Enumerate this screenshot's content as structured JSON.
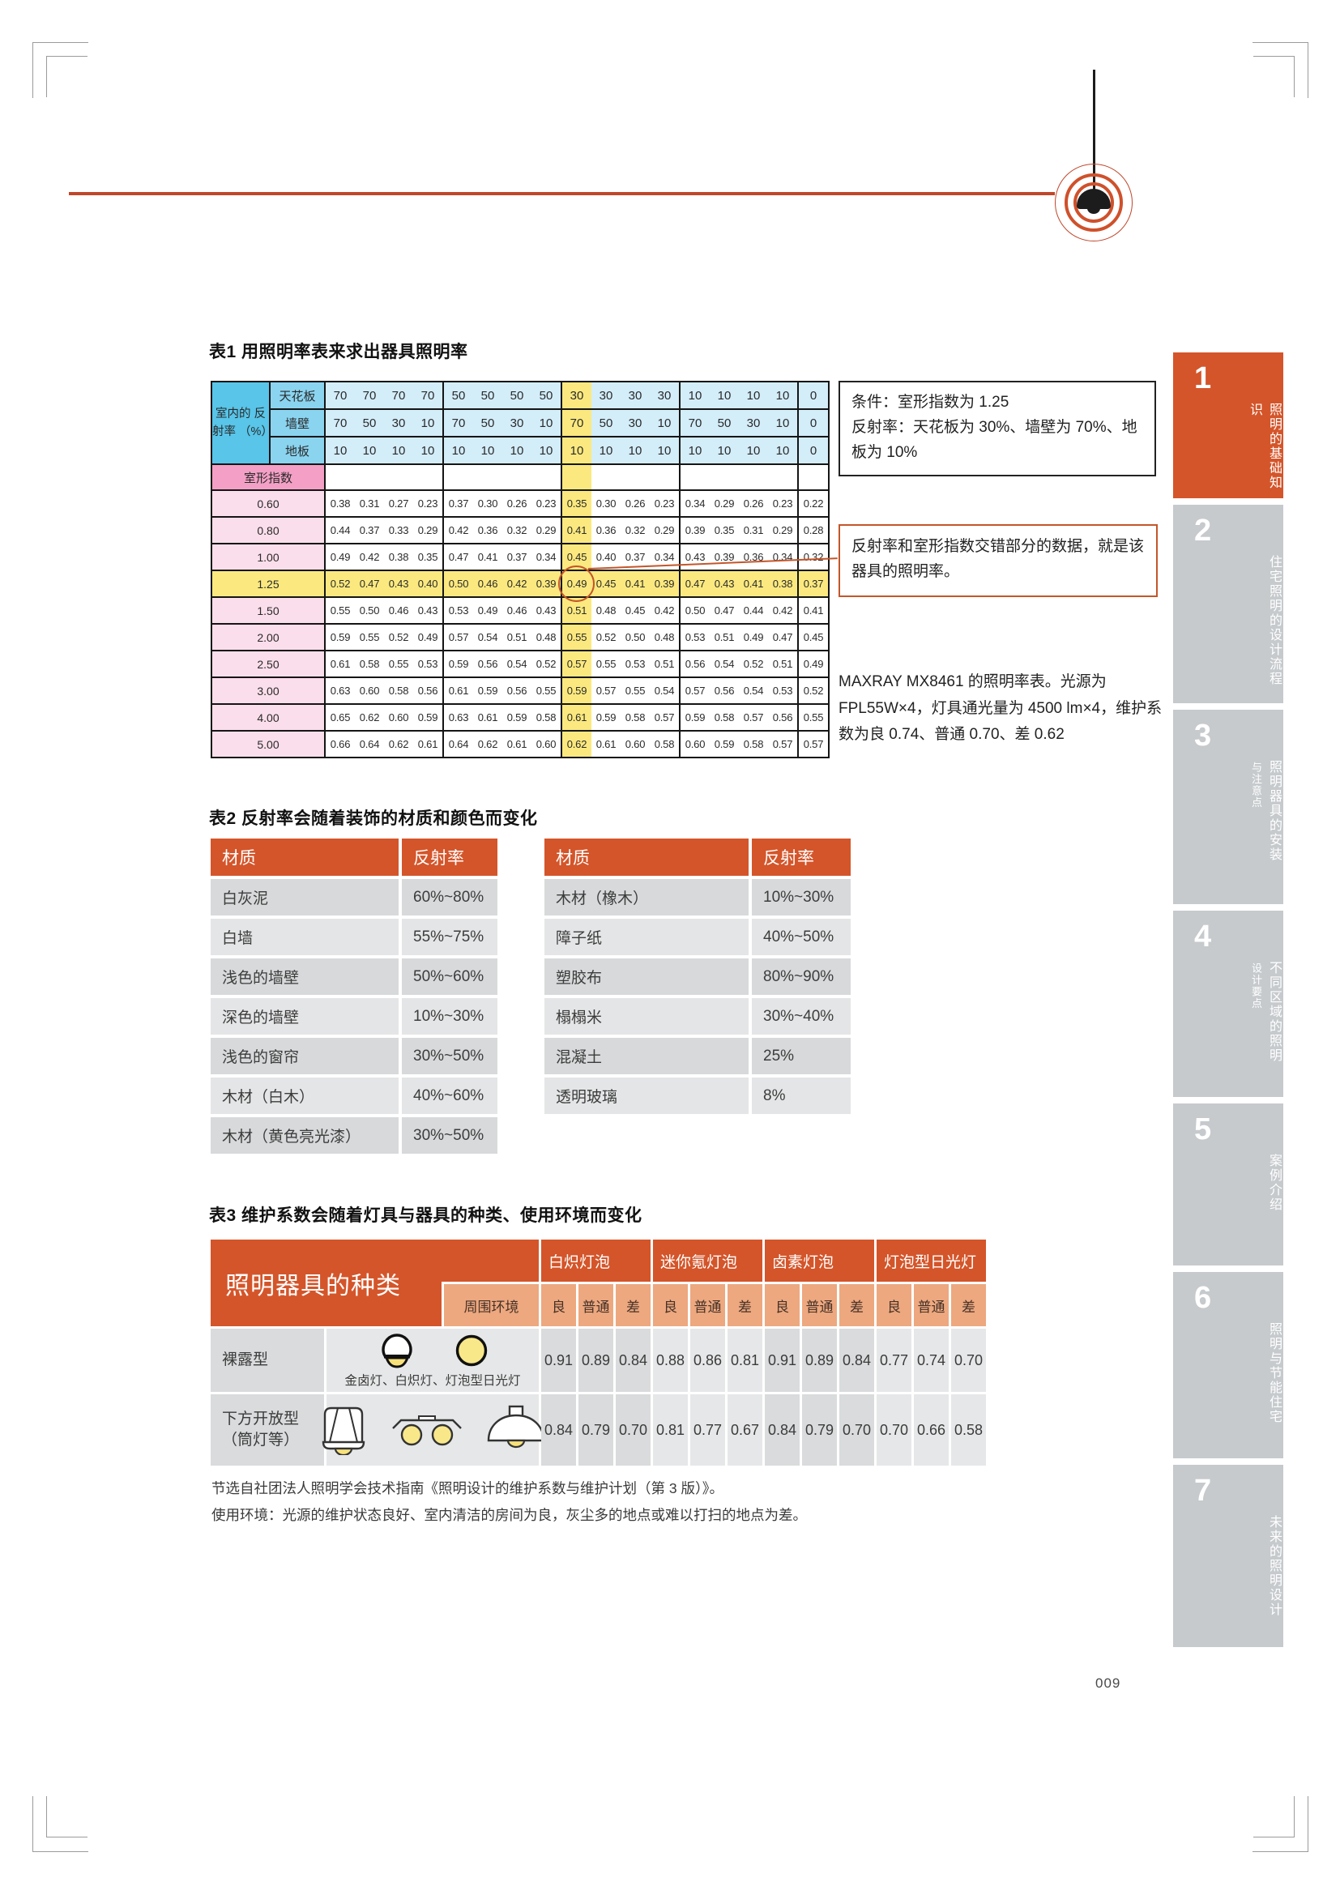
{
  "page": {
    "number": "009"
  },
  "colors": {
    "accent": "#d4552a",
    "highlight_yellow": "#fbe97f",
    "header_blue": "#58c5e9",
    "index_pink": "#f4a0c6"
  },
  "table1": {
    "title": "表1 用照明率表来求出器具照明率",
    "corner_label": "室内的 反射率 （%）",
    "row_labels": [
      "天花板",
      "墙壁",
      "地板"
    ],
    "header": {
      "ceiling": [
        "70",
        "70",
        "70",
        "70",
        "50",
        "50",
        "50",
        "50",
        "30",
        "30",
        "30",
        "30",
        "10",
        "10",
        "10",
        "10",
        "0"
      ],
      "wall": [
        "70",
        "50",
        "30",
        "10",
        "70",
        "50",
        "30",
        "10",
        "70",
        "50",
        "30",
        "10",
        "70",
        "50",
        "30",
        "10",
        "0"
      ],
      "floor": [
        "10",
        "10",
        "10",
        "10",
        "10",
        "10",
        "10",
        "10",
        "10",
        "10",
        "10",
        "10",
        "10",
        "10",
        "10",
        "10",
        "0"
      ]
    },
    "index_label": "室形指数",
    "highlight_col": 8,
    "highlight_row": "1.25",
    "rows": [
      {
        "index": "0.60",
        "values": [
          "0.38",
          "0.31",
          "0.27",
          "0.23",
          "0.37",
          "0.30",
          "0.26",
          "0.23",
          "0.35",
          "0.30",
          "0.26",
          "0.23",
          "0.34",
          "0.29",
          "0.26",
          "0.23",
          "0.22"
        ]
      },
      {
        "index": "0.80",
        "values": [
          "0.44",
          "0.37",
          "0.33",
          "0.29",
          "0.42",
          "0.36",
          "0.32",
          "0.29",
          "0.41",
          "0.36",
          "0.32",
          "0.29",
          "0.39",
          "0.35",
          "0.31",
          "0.29",
          "0.28"
        ]
      },
      {
        "index": "1.00",
        "values": [
          "0.49",
          "0.42",
          "0.38",
          "0.35",
          "0.47",
          "0.41",
          "0.37",
          "0.34",
          "0.45",
          "0.40",
          "0.37",
          "0.34",
          "0.43",
          "0.39",
          "0.36",
          "0.34",
          "0.32"
        ]
      },
      {
        "index": "1.25",
        "values": [
          "0.52",
          "0.47",
          "0.43",
          "0.40",
          "0.50",
          "0.46",
          "0.42",
          "0.39",
          "0.49",
          "0.45",
          "0.41",
          "0.39",
          "0.47",
          "0.43",
          "0.41",
          "0.38",
          "0.37"
        ]
      },
      {
        "index": "1.50",
        "values": [
          "0.55",
          "0.50",
          "0.46",
          "0.43",
          "0.53",
          "0.49",
          "0.46",
          "0.43",
          "0.51",
          "0.48",
          "0.45",
          "0.42",
          "0.50",
          "0.47",
          "0.44",
          "0.42",
          "0.41"
        ]
      },
      {
        "index": "2.00",
        "values": [
          "0.59",
          "0.55",
          "0.52",
          "0.49",
          "0.57",
          "0.54",
          "0.51",
          "0.48",
          "0.55",
          "0.52",
          "0.50",
          "0.48",
          "0.53",
          "0.51",
          "0.49",
          "0.47",
          "0.45"
        ]
      },
      {
        "index": "2.50",
        "values": [
          "0.61",
          "0.58",
          "0.55",
          "0.53",
          "0.59",
          "0.56",
          "0.54",
          "0.52",
          "0.57",
          "0.55",
          "0.53",
          "0.51",
          "0.56",
          "0.54",
          "0.52",
          "0.51",
          "0.49"
        ]
      },
      {
        "index": "3.00",
        "values": [
          "0.63",
          "0.60",
          "0.58",
          "0.56",
          "0.61",
          "0.59",
          "0.56",
          "0.55",
          "0.59",
          "0.57",
          "0.55",
          "0.54",
          "0.57",
          "0.56",
          "0.54",
          "0.53",
          "0.52"
        ]
      },
      {
        "index": "4.00",
        "values": [
          "0.65",
          "0.62",
          "0.60",
          "0.59",
          "0.63",
          "0.61",
          "0.59",
          "0.58",
          "0.61",
          "0.59",
          "0.58",
          "0.57",
          "0.59",
          "0.58",
          "0.57",
          "0.56",
          "0.55"
        ]
      },
      {
        "index": "5.00",
        "values": [
          "0.66",
          "0.64",
          "0.62",
          "0.61",
          "0.64",
          "0.62",
          "0.61",
          "0.60",
          "0.62",
          "0.61",
          "0.60",
          "0.58",
          "0.60",
          "0.59",
          "0.58",
          "0.57",
          "0.57"
        ]
      }
    ],
    "notes": {
      "condition_line1": "条件：室形指数为 1.25",
      "condition_line2": "反射率：天花板为 30%、墙壁为 70%、地板为 10%",
      "callout": "反射率和室形指数交错部分的数据，就是该器具的照明率。",
      "source": "MAXRAY MX8461 的照明率表。光源为 FPL55W×4，灯具通光量为 4500 lm×4，维护系数为良 0.74、普通 0.70、差 0.62"
    }
  },
  "table2": {
    "title": "表2 反射率会随着装饰的材质和颜色而变化",
    "col_material": "材质",
    "col_reflectance": "反射率",
    "left": [
      {
        "material": "白灰泥",
        "reflectance": "60%~80%"
      },
      {
        "material": "白墙",
        "reflectance": "55%~75%"
      },
      {
        "material": "浅色的墙壁",
        "reflectance": "50%~60%"
      },
      {
        "material": "深色的墙壁",
        "reflectance": "10%~30%"
      },
      {
        "material": "浅色的窗帘",
        "reflectance": "30%~50%"
      },
      {
        "material": "木材（白木）",
        "reflectance": "40%~60%"
      },
      {
        "material": "木材（黄色亮光漆）",
        "reflectance": "30%~50%"
      }
    ],
    "right": [
      {
        "material": "木材（橡木）",
        "reflectance": "10%~30%"
      },
      {
        "material": "障子纸",
        "reflectance": "40%~50%"
      },
      {
        "material": "塑胶布",
        "reflectance": "80%~90%"
      },
      {
        "material": "榻榻米",
        "reflectance": "30%~40%"
      },
      {
        "material": "混凝土",
        "reflectance": "25%"
      },
      {
        "material": "透明玻璃",
        "reflectance": "8%"
      }
    ]
  },
  "table3": {
    "title": "表3 维护系数会随着灯具与器具的种类、使用环境而变化",
    "corner_label": "照明器具的种类",
    "env_label": "周围环境",
    "groups": [
      "白炽灯泡",
      "迷你氪灯泡",
      "卤素灯泡",
      "灯泡型日光灯"
    ],
    "subheaders": [
      "良",
      "普通",
      "差"
    ],
    "rows": [
      {
        "label": "裸露型",
        "caption": "金卤灯、白炽灯、灯泡型日光灯",
        "values": [
          "0.91",
          "0.89",
          "0.84",
          "0.88",
          "0.86",
          "0.81",
          "0.91",
          "0.89",
          "0.84",
          "0.77",
          "0.74",
          "0.70"
        ]
      },
      {
        "label": "下方开放型 （筒灯等）",
        "caption": "",
        "values": [
          "0.84",
          "0.79",
          "0.70",
          "0.81",
          "0.77",
          "0.67",
          "0.84",
          "0.79",
          "0.70",
          "0.70",
          "0.66",
          "0.58"
        ]
      }
    ]
  },
  "footnotes": [
    "节选自社团法人照明学会技术指南《照明设计的维护系数与维护计划（第 3 版）》。",
    "使用环境：光源的维护状态良好、室内清洁的房间为良，灰尘多的地点或难以打扫的地点为差。"
  ],
  "sidebar": {
    "items": [
      {
        "number": "1",
        "label": "照明的基础知识",
        "sub": "",
        "active": true
      },
      {
        "number": "2",
        "label": "住宅照明的设计流程",
        "sub": "",
        "active": false
      },
      {
        "number": "3",
        "label": "照明器具的安装",
        "sub": "与注意点",
        "active": false
      },
      {
        "number": "4",
        "label": "不同区域的照明",
        "sub": "设计要点",
        "active": false
      },
      {
        "number": "5",
        "label": "案例介绍",
        "sub": "",
        "active": false
      },
      {
        "number": "6",
        "label": "照明与节能住宅",
        "sub": "",
        "active": false
      },
      {
        "number": "7",
        "label": "未来的照明设计",
        "sub": "",
        "active": false
      }
    ]
  }
}
